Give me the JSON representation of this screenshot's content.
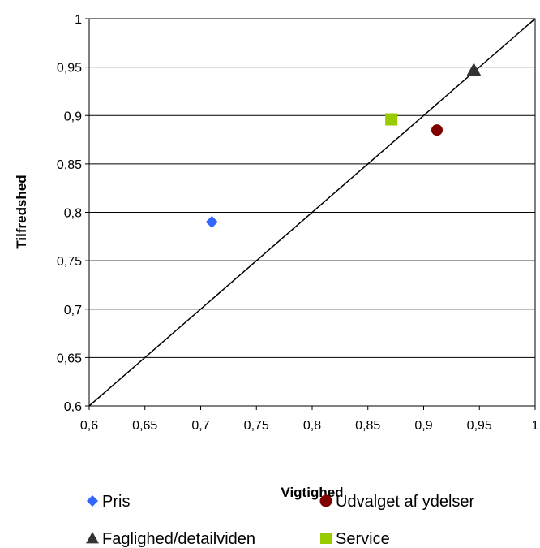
{
  "chart_data": {
    "type": "scatter",
    "title": "",
    "xlabel": "Vigtighed",
    "ylabel": "Tilfredshed",
    "xlim": [
      0.6,
      1.0
    ],
    "ylim": [
      0.6,
      1.0
    ],
    "x_ticks": [
      "0,6",
      "0,65",
      "0,7",
      "0,75",
      "0,8",
      "0,85",
      "0,9",
      "0,95",
      "1"
    ],
    "y_ticks": [
      "0,6",
      "0,65",
      "0,7",
      "0,75",
      "0,8",
      "0,85",
      "0,9",
      "0,95",
      "1"
    ],
    "grid": "horizontal",
    "reference_line": {
      "from": [
        0.6,
        0.6
      ],
      "to": [
        1.0,
        1.0
      ],
      "color": "#000000"
    },
    "legend_position": "bottom",
    "series": [
      {
        "name": "Pris",
        "marker": "diamond",
        "color": "#3366FF",
        "x": 0.71,
        "y": 0.79
      },
      {
        "name": "Udvalget af ydelser",
        "marker": "circle",
        "color": "#800000",
        "x": 0.912,
        "y": 0.885
      },
      {
        "name": "Faglighed/detailviden",
        "marker": "triangle",
        "color": "#333333",
        "x": 0.945,
        "y": 0.947
      },
      {
        "name": "Service",
        "marker": "square",
        "color": "#99CC00",
        "x": 0.871,
        "y": 0.896
      }
    ]
  }
}
